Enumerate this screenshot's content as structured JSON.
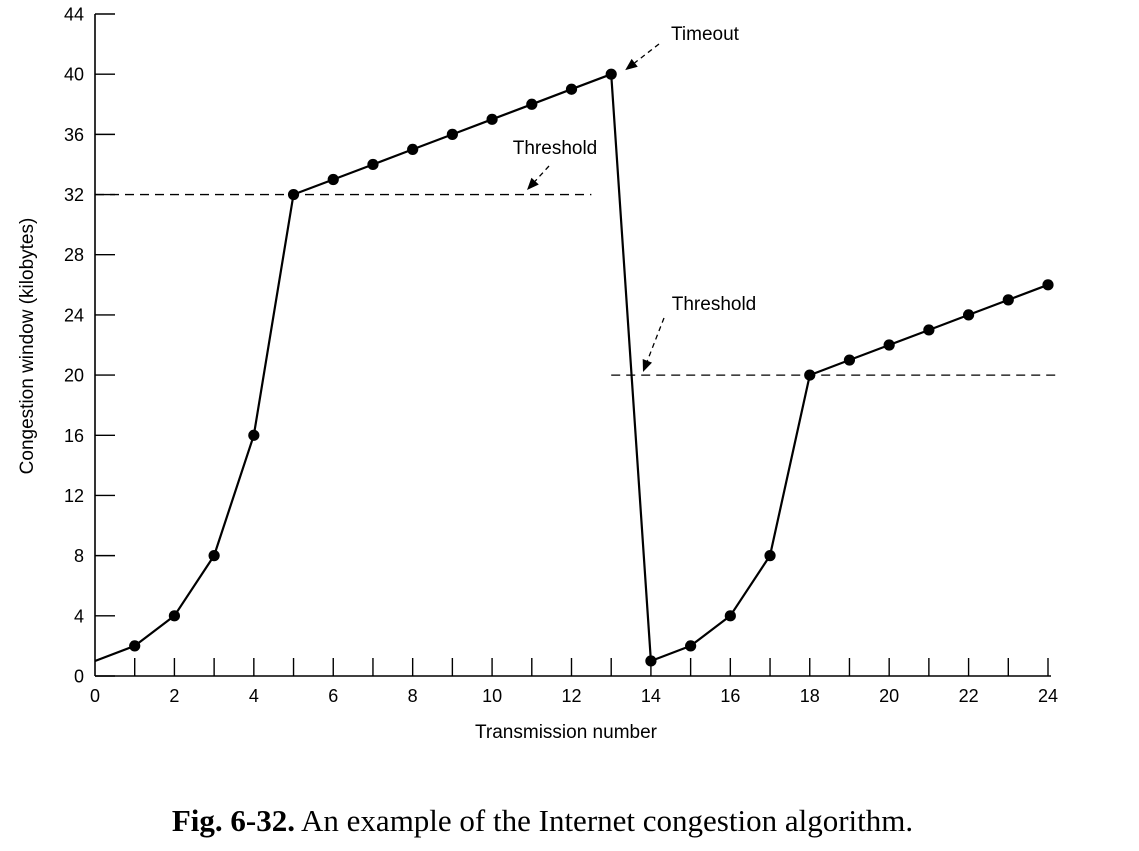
{
  "chart_data": {
    "type": "line",
    "xlabel": "Transmission number",
    "ylabel": "Congestion window (kilobytes)",
    "xlim": [
      0,
      24
    ],
    "ylim": [
      0,
      44
    ],
    "x_ticks_major": [
      0,
      2,
      4,
      6,
      8,
      10,
      12,
      14,
      16,
      18,
      20,
      22,
      24
    ],
    "x_ticks_minor": [
      1,
      3,
      5,
      7,
      9,
      11,
      13,
      15,
      17,
      19,
      21,
      23
    ],
    "y_ticks": [
      0,
      4,
      8,
      12,
      16,
      20,
      24,
      28,
      32,
      36,
      40,
      44
    ],
    "grid": false,
    "series": [
      {
        "x": [
          0,
          1,
          2,
          3,
          4,
          5,
          6,
          7,
          8,
          9,
          10,
          11,
          12,
          13,
          14,
          15,
          16,
          17,
          18,
          19,
          20,
          21,
          22,
          23,
          24
        ],
        "y": [
          1,
          2,
          4,
          8,
          16,
          32,
          33,
          34,
          35,
          36,
          37,
          38,
          39,
          40,
          1,
          2,
          4,
          8,
          20,
          21,
          22,
          23,
          24,
          25,
          26
        ],
        "markers": [
          false,
          true,
          true,
          true,
          true,
          true,
          true,
          true,
          true,
          true,
          true,
          true,
          true,
          true,
          true,
          true,
          true,
          true,
          true,
          true,
          true,
          true,
          true,
          true,
          true
        ]
      }
    ],
    "thresholds": [
      {
        "label": "Threshold",
        "y": 32,
        "x_range": [
          0,
          12.5
        ]
      },
      {
        "label": "Threshold",
        "y": 20,
        "x_range": [
          13,
          24.3
        ]
      }
    ],
    "annotations": [
      {
        "text": "Timeout",
        "target_x": 13,
        "target_y": 40
      }
    ]
  },
  "caption": {
    "figure_number": "Fig.  6-32.",
    "text": " An example of the Internet congestion algorithm."
  }
}
